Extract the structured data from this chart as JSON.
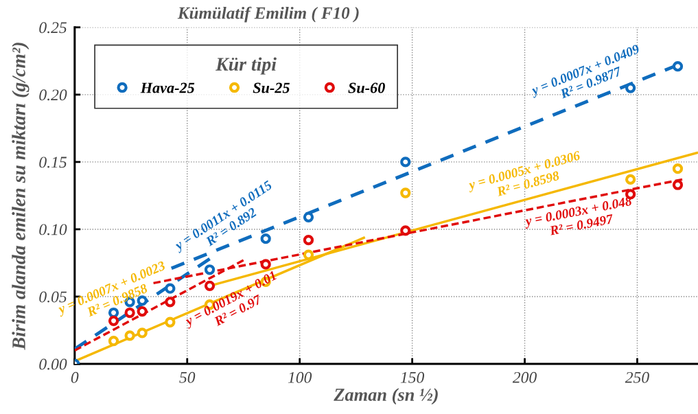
{
  "chart_data": {
    "type": "scatter",
    "title": "Kümülatif Emilim ( F10 )",
    "xlabel": "Zaman (sn ½)",
    "ylabel": "Birim alanda emilen su miktarı (g/cm²)",
    "legend_title": "Kür tipi",
    "series": [
      {
        "name": "Hava-25",
        "marker": "circle",
        "color": "#0f6cbd",
        "x": [
          0,
          17.3,
          24.5,
          30,
          42.4,
          60,
          84.9,
          103.9,
          147,
          247,
          268
        ],
        "values": [
          0,
          0.038,
          0.046,
          0.047,
          0.056,
          0.07,
          0.093,
          0.109,
          0.15,
          0.205,
          0.221
        ]
      },
      {
        "name": "Su-25",
        "marker": "circle",
        "color": "#f5b800",
        "x": [
          17.3,
          24.5,
          30,
          42.4,
          60,
          84.9,
          103.9,
          147,
          247,
          268
        ],
        "values": [
          0.017,
          0.021,
          0.023,
          0.031,
          0.044,
          0.061,
          0.081,
          0.127,
          0.137,
          0.145
        ]
      },
      {
        "name": "Su-60",
        "marker": "circle",
        "color": "#e00b0b",
        "x": [
          17.3,
          24.5,
          30,
          42.4,
          60,
          84.9,
          103.9,
          147,
          247,
          268
        ],
        "values": [
          0.032,
          0.038,
          0.039,
          0.046,
          0.058,
          0.074,
          0.092,
          0.099,
          0.126,
          0.133
        ]
      },
      {
        "type": "line",
        "line_style": "solid",
        "color": "#f5b800",
        "x": [
          0,
          129
        ],
        "values": [
          0.002,
          0.094
        ]
      },
      {
        "type": "line",
        "line_style": "dashed",
        "color": "#0f6cbd",
        "x": [
          0,
          60
        ],
        "values": [
          0.011,
          0.078
        ]
      },
      {
        "type": "line",
        "line_style": "dashed",
        "color": "#0f6cbd",
        "x": [
          43,
          268
        ],
        "values": [
          0.071,
          0.222
        ]
      },
      {
        "type": "line",
        "line_style": "solid",
        "color": "#f5b800",
        "x": [
          60,
          277
        ],
        "values": [
          0.058,
          0.157
        ]
      },
      {
        "type": "line",
        "line_style": "dashed",
        "color": "#e00b0b",
        "x": [
          35,
          270
        ],
        "values": [
          0.06,
          0.137
        ]
      },
      {
        "type": "line",
        "line_style": "dashed",
        "color": "#e00b0b",
        "x": [
          0,
          75
        ],
        "values": [
          0.01,
          0.077
        ]
      }
    ],
    "annotations": [
      "y = 0.0007x + 0.0023\nR² = 0.9858",
      "y = 0.0011x + 0.0115\nR² = 0.892",
      "y = 0.0007x + 0.0409\nR² = 0.9877",
      "y = 0.0005x + 0.0306\nR² = 0.8598",
      "y = 0.0003x + 0.048\nR² = 0.9497",
      "y = 0.0019x + 0.01\nR² = 0.97"
    ],
    "xlim": [
      0,
      277
    ],
    "ylim": [
      0,
      0.25
    ],
    "xticks": [
      0,
      50,
      100,
      150,
      200,
      250
    ],
    "yticks": [
      {
        "value": 0,
        "label": "0.00"
      },
      {
        "value": 0.05,
        "label": "0.05"
      },
      {
        "value": 0.1,
        "label": "0.10"
      },
      {
        "value": 0.15,
        "label": "0.15"
      },
      {
        "value": 0.2,
        "label": "0.20"
      },
      {
        "value": 0.25,
        "label": "0.25"
      }
    ],
    "grid": true,
    "legend": "top left"
  }
}
